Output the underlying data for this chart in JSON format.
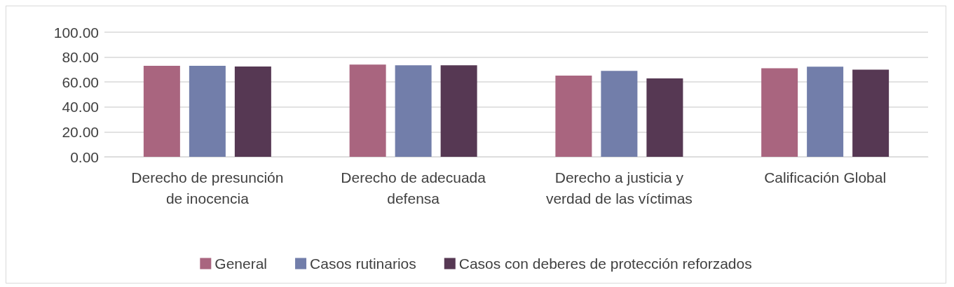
{
  "chart_data": {
    "type": "bar",
    "categories": [
      "Derecho de presunción de inocencia",
      "Derecho de adecuada defensa",
      "Derecho a justicia y verdad de las víctimas",
      "Calificación Global"
    ],
    "series": [
      {
        "name": "General",
        "color": "#a9657f",
        "values": [
          73.0,
          74.0,
          65.2,
          71.0
        ]
      },
      {
        "name": "Casos rutinarios",
        "color": "#727eaa",
        "values": [
          73.0,
          73.5,
          69.0,
          72.4
        ]
      },
      {
        "name": "Casos con deberes de protección reforzados",
        "color": "#563853",
        "values": [
          72.5,
          73.5,
          62.9,
          70.0
        ]
      }
    ],
    "ylim": [
      0,
      100
    ],
    "yticks": [
      {
        "value": 0,
        "label": "0.00"
      },
      {
        "value": 20,
        "label": "20.00"
      },
      {
        "value": 40,
        "label": "40.00"
      },
      {
        "value": 60,
        "label": "60.00"
      },
      {
        "value": 80,
        "label": "80.00"
      },
      {
        "value": 100,
        "label": "100.00"
      }
    ],
    "grid": "y",
    "legend": "bottom"
  }
}
